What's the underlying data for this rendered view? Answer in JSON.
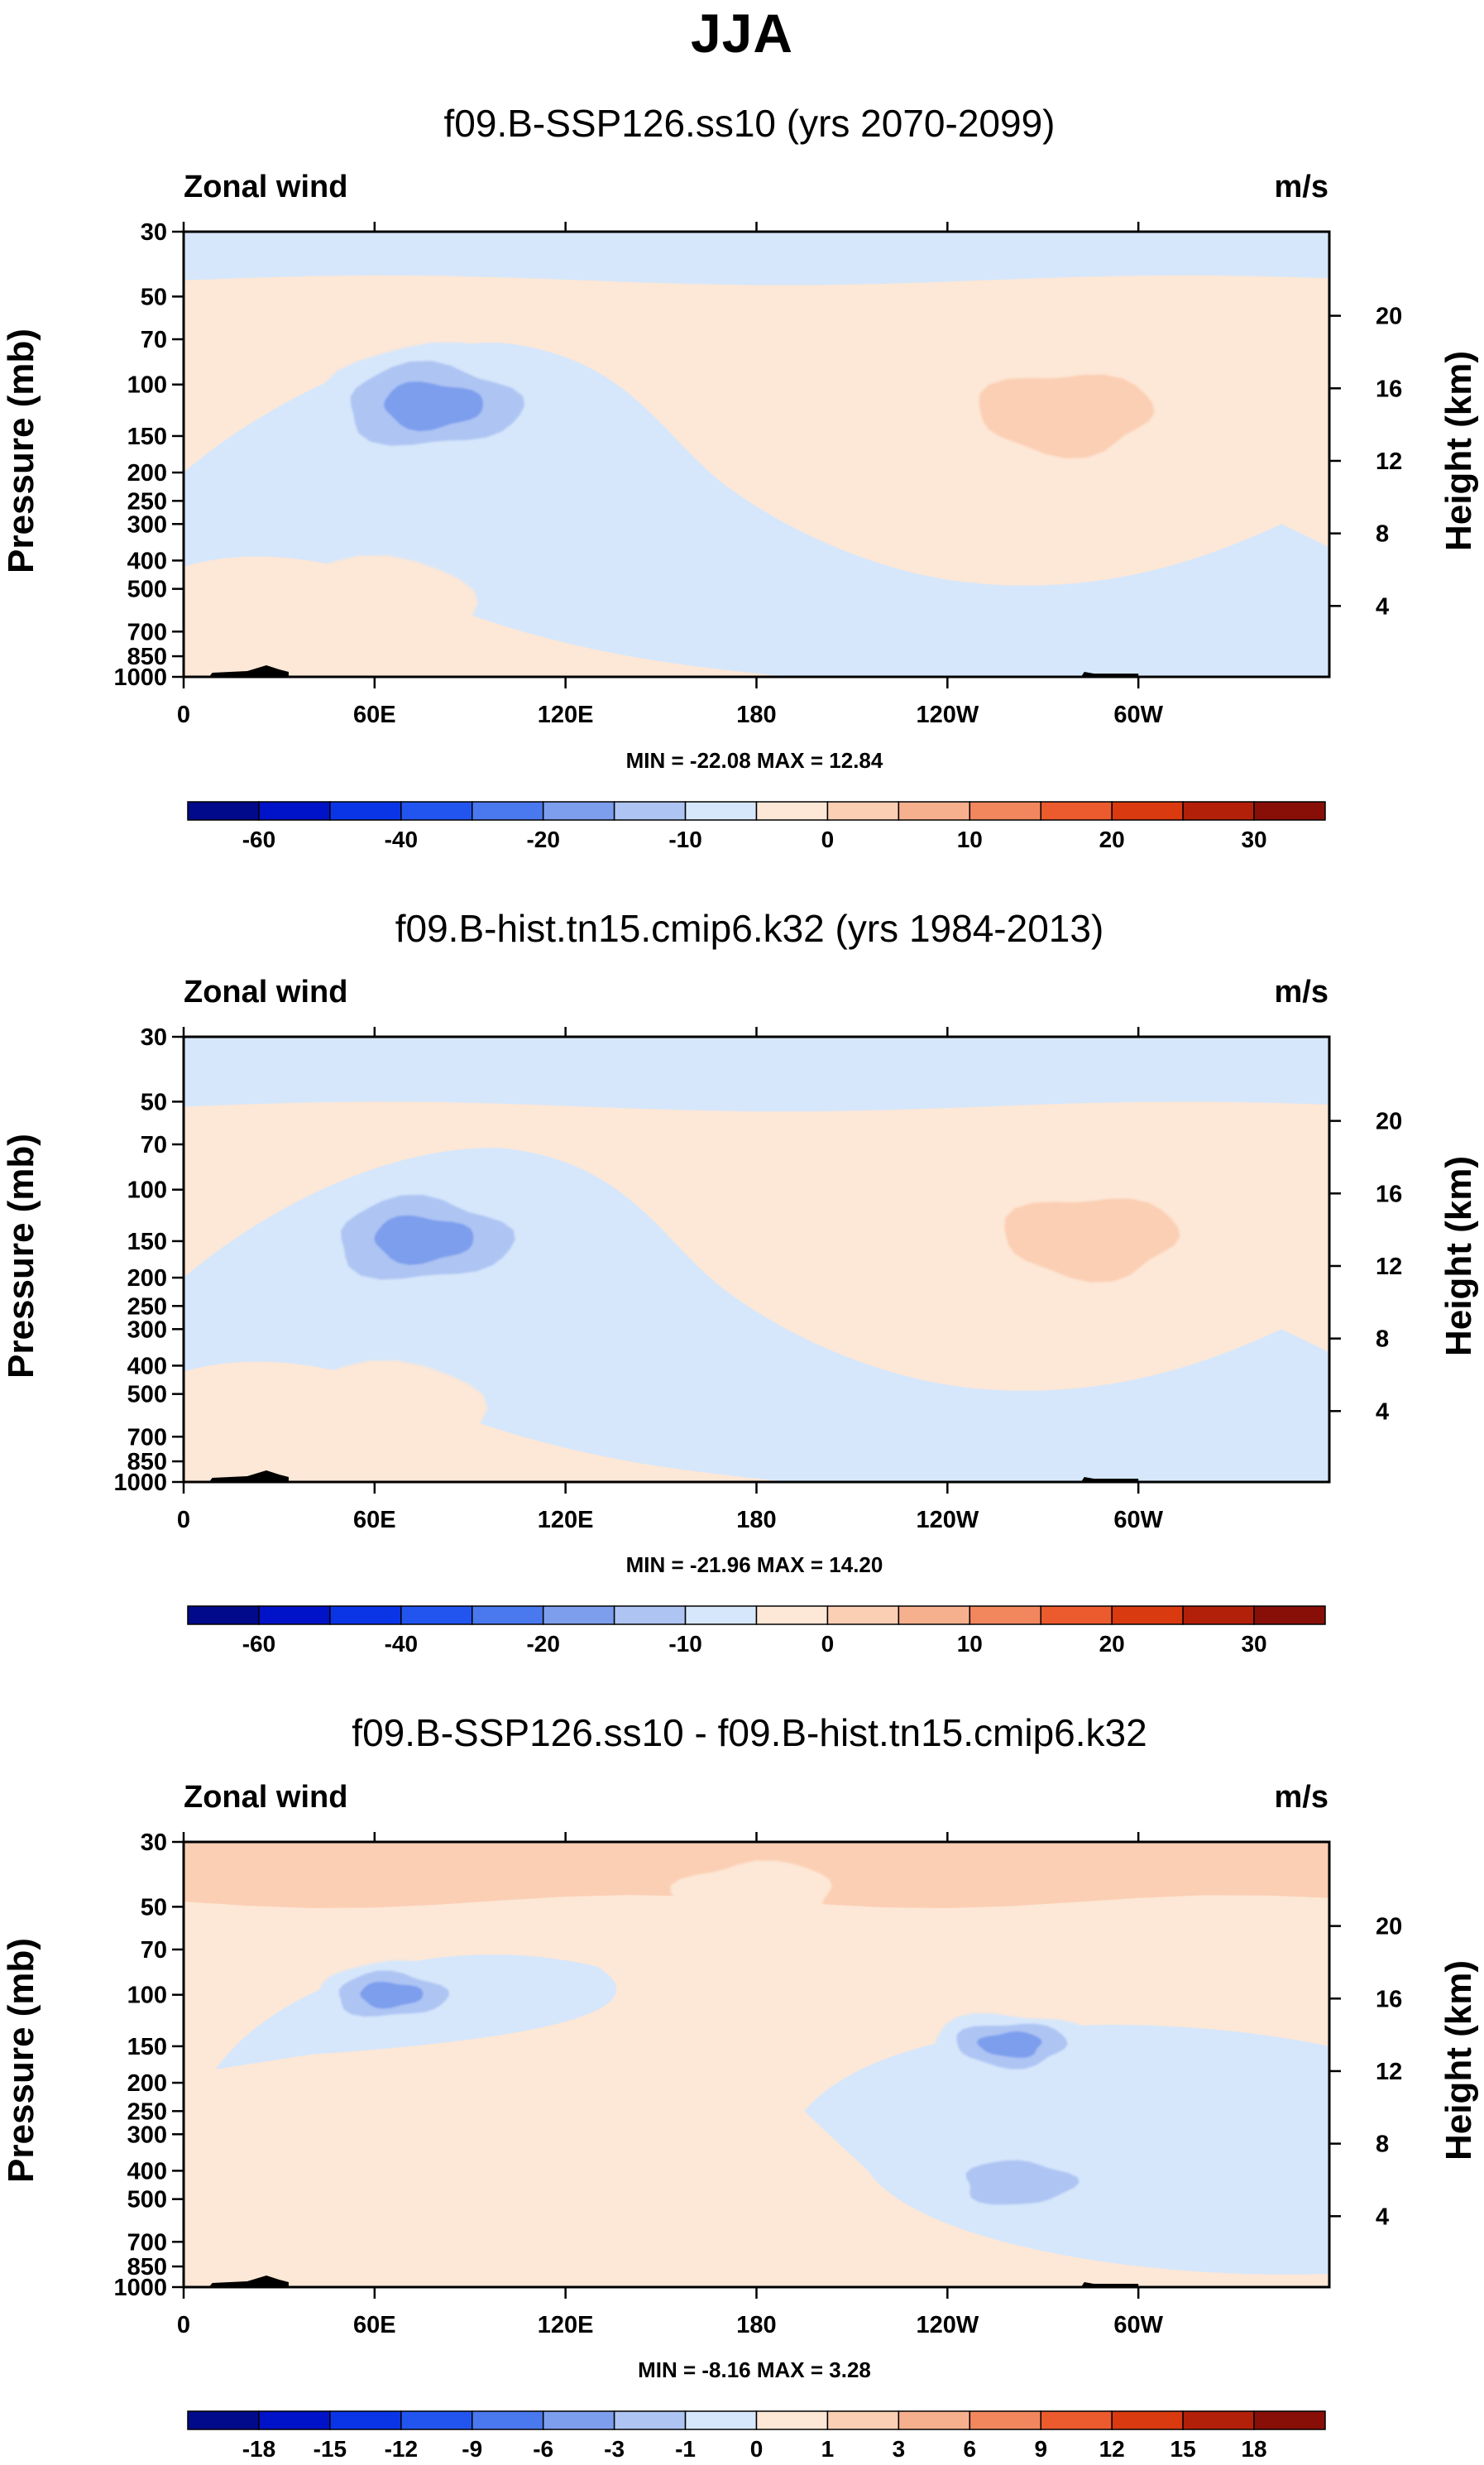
{
  "figure": {
    "title": "JJA"
  },
  "chart_data": [
    {
      "type": "contour",
      "title": "f09.B-SSP126.ss10 (yrs 2070-2099)",
      "left_label": "Zonal wind",
      "right_label": "m/s",
      "ylabel": "Pressure (mb)",
      "ylabel_right": "Height (km)",
      "x_ticks": [
        "0",
        "60E",
        "120E",
        "180",
        "120W",
        "60W"
      ],
      "x_tick_lon": [
        0,
        60,
        120,
        180,
        240,
        300
      ],
      "xlim": [
        0,
        360
      ],
      "y_ticks": [
        "30",
        "50",
        "70",
        "100",
        "150",
        "200",
        "250",
        "300",
        "400",
        "500",
        "700",
        "850",
        "1000"
      ],
      "y_tick_mb": [
        30,
        50,
        70,
        100,
        150,
        200,
        250,
        300,
        400,
        500,
        700,
        850,
        1000
      ],
      "ylim": [
        1000,
        30
      ],
      "height_ticks": [
        "20",
        "16",
        "12",
        "8",
        "4"
      ],
      "height_km": [
        20,
        16,
        12,
        8,
        4
      ],
      "stats": "MIN = -22.08  MAX =  12.84",
      "min": -22.08,
      "max": 12.84,
      "colorbar": {
        "labels": [
          "-60",
          "-40",
          "-20",
          "-10",
          "0",
          "10",
          "20",
          "30"
        ],
        "label_bins": [
          1,
          3,
          5,
          7,
          9,
          11,
          13,
          15
        ]
      },
      "features": [
        {
          "desc": "easterly core",
          "lon": 78,
          "mb": 118,
          "sign": "neg",
          "levels": [
            -5,
            -10,
            -20
          ]
        },
        {
          "desc": "westerly core",
          "lon": 277,
          "mb": 125,
          "sign": "pos",
          "levels": [
            5,
            10
          ]
        },
        {
          "desc": "low-level westerly",
          "lon": 55,
          "mb": 620,
          "sign": "pos",
          "levels": [
            5
          ]
        },
        {
          "desc": "low-level easterly",
          "lon": 240,
          "mb": 760,
          "sign": "neg",
          "levels": [
            -5
          ]
        }
      ]
    },
    {
      "type": "contour",
      "title": "f09.B-hist.tn15.cmip6.k32 (yrs 1984-2013)",
      "left_label": "Zonal wind",
      "right_label": "m/s",
      "ylabel": "Pressure (mb)",
      "ylabel_right": "Height (km)",
      "x_ticks": [
        "0",
        "60E",
        "120E",
        "180",
        "120W",
        "60W"
      ],
      "x_tick_lon": [
        0,
        60,
        120,
        180,
        240,
        300
      ],
      "xlim": [
        0,
        360
      ],
      "y_ticks": [
        "30",
        "50",
        "70",
        "100",
        "150",
        "200",
        "250",
        "300",
        "400",
        "500",
        "700",
        "850",
        "1000"
      ],
      "y_tick_mb": [
        30,
        50,
        70,
        100,
        150,
        200,
        250,
        300,
        400,
        500,
        700,
        850,
        1000
      ],
      "ylim": [
        1000,
        30
      ],
      "height_ticks": [
        "20",
        "16",
        "12",
        "8",
        "4"
      ],
      "height_km": [
        20,
        16,
        12,
        8,
        4
      ],
      "stats": "MIN = -21.96  MAX = 14.20",
      "min": -21.96,
      "max": 14.2,
      "colorbar": {
        "labels": [
          "-60",
          "-40",
          "-20",
          "-10",
          "0",
          "10",
          "20",
          "30"
        ],
        "label_bins": [
          1,
          3,
          5,
          7,
          9,
          11,
          13,
          15
        ]
      },
      "features": [
        {
          "desc": "easterly core",
          "lon": 75,
          "mb": 148,
          "sign": "neg",
          "levels": [
            -5,
            -10,
            -20
          ]
        },
        {
          "desc": "westerly core",
          "lon": 285,
          "mb": 145,
          "sign": "pos",
          "levels": [
            5,
            10
          ]
        },
        {
          "desc": "low-level westerly",
          "lon": 58,
          "mb": 620,
          "sign": "pos",
          "levels": [
            5
          ]
        },
        {
          "desc": "low-level easterly",
          "lon": 250,
          "mb": 780,
          "sign": "neg",
          "levels": [
            -5
          ]
        }
      ]
    },
    {
      "type": "contour",
      "title": "f09.B-SSP126.ss10 - f09.B-hist.tn15.cmip6.k32",
      "left_label": "Zonal wind",
      "right_label": "m/s",
      "ylabel": "Pressure (mb)",
      "ylabel_right": "Height (km)",
      "x_ticks": [
        "0",
        "60E",
        "120E",
        "180",
        "120W",
        "60W"
      ],
      "x_tick_lon": [
        0,
        60,
        120,
        180,
        240,
        300
      ],
      "xlim": [
        0,
        360
      ],
      "y_ticks": [
        "30",
        "50",
        "70",
        "100",
        "150",
        "200",
        "250",
        "300",
        "400",
        "500",
        "700",
        "850",
        "1000"
      ],
      "y_tick_mb": [
        30,
        50,
        70,
        100,
        150,
        200,
        250,
        300,
        400,
        500,
        700,
        850,
        1000
      ],
      "ylim": [
        1000,
        30
      ],
      "height_ticks": [
        "20",
        "16",
        "12",
        "8",
        "4"
      ],
      "height_km": [
        20,
        16,
        12,
        8,
        4
      ],
      "stats": "MIN = -8.16  MAX =   3.28",
      "min": -8.16,
      "max": 3.28,
      "colorbar": {
        "labels": [
          "-18",
          "-15",
          "-12",
          "-9",
          "-6",
          "-3",
          "-1",
          "0",
          "1",
          "3",
          "6",
          "9",
          "12",
          "15",
          "18"
        ],
        "label_bins": [
          1,
          2,
          3,
          4,
          5,
          6,
          7,
          8,
          9,
          10,
          11,
          12,
          13,
          14,
          15
        ]
      },
      "features": [
        {
          "desc": "negative anomaly",
          "lon": 65,
          "mb": 100,
          "sign": "neg",
          "levels": [
            -1,
            -3,
            -6
          ]
        },
        {
          "desc": "negative anomaly",
          "lon": 260,
          "mb": 148,
          "sign": "neg",
          "levels": [
            -1,
            -3,
            -6
          ]
        },
        {
          "desc": "positive anomaly upper",
          "lon": 180,
          "mb": 45,
          "sign": "pos",
          "levels": [
            1
          ]
        },
        {
          "desc": "negative anomaly",
          "lon": 262,
          "mb": 440,
          "sign": "neg",
          "levels": [
            -1,
            -3
          ]
        }
      ]
    }
  ],
  "colors": {
    "neg": [
      "#000a8a",
      "#0013c8",
      "#0a35e6",
      "#2255f0",
      "#4a78ee",
      "#7d9ded",
      "#aec5f3",
      "#d6e7fb"
    ],
    "pos": [
      "#fde7d6",
      "#fbcfb4",
      "#f7b08e",
      "#f2875e",
      "#ec5b2e",
      "#d93a10",
      "#b32009",
      "#880f08"
    ]
  }
}
